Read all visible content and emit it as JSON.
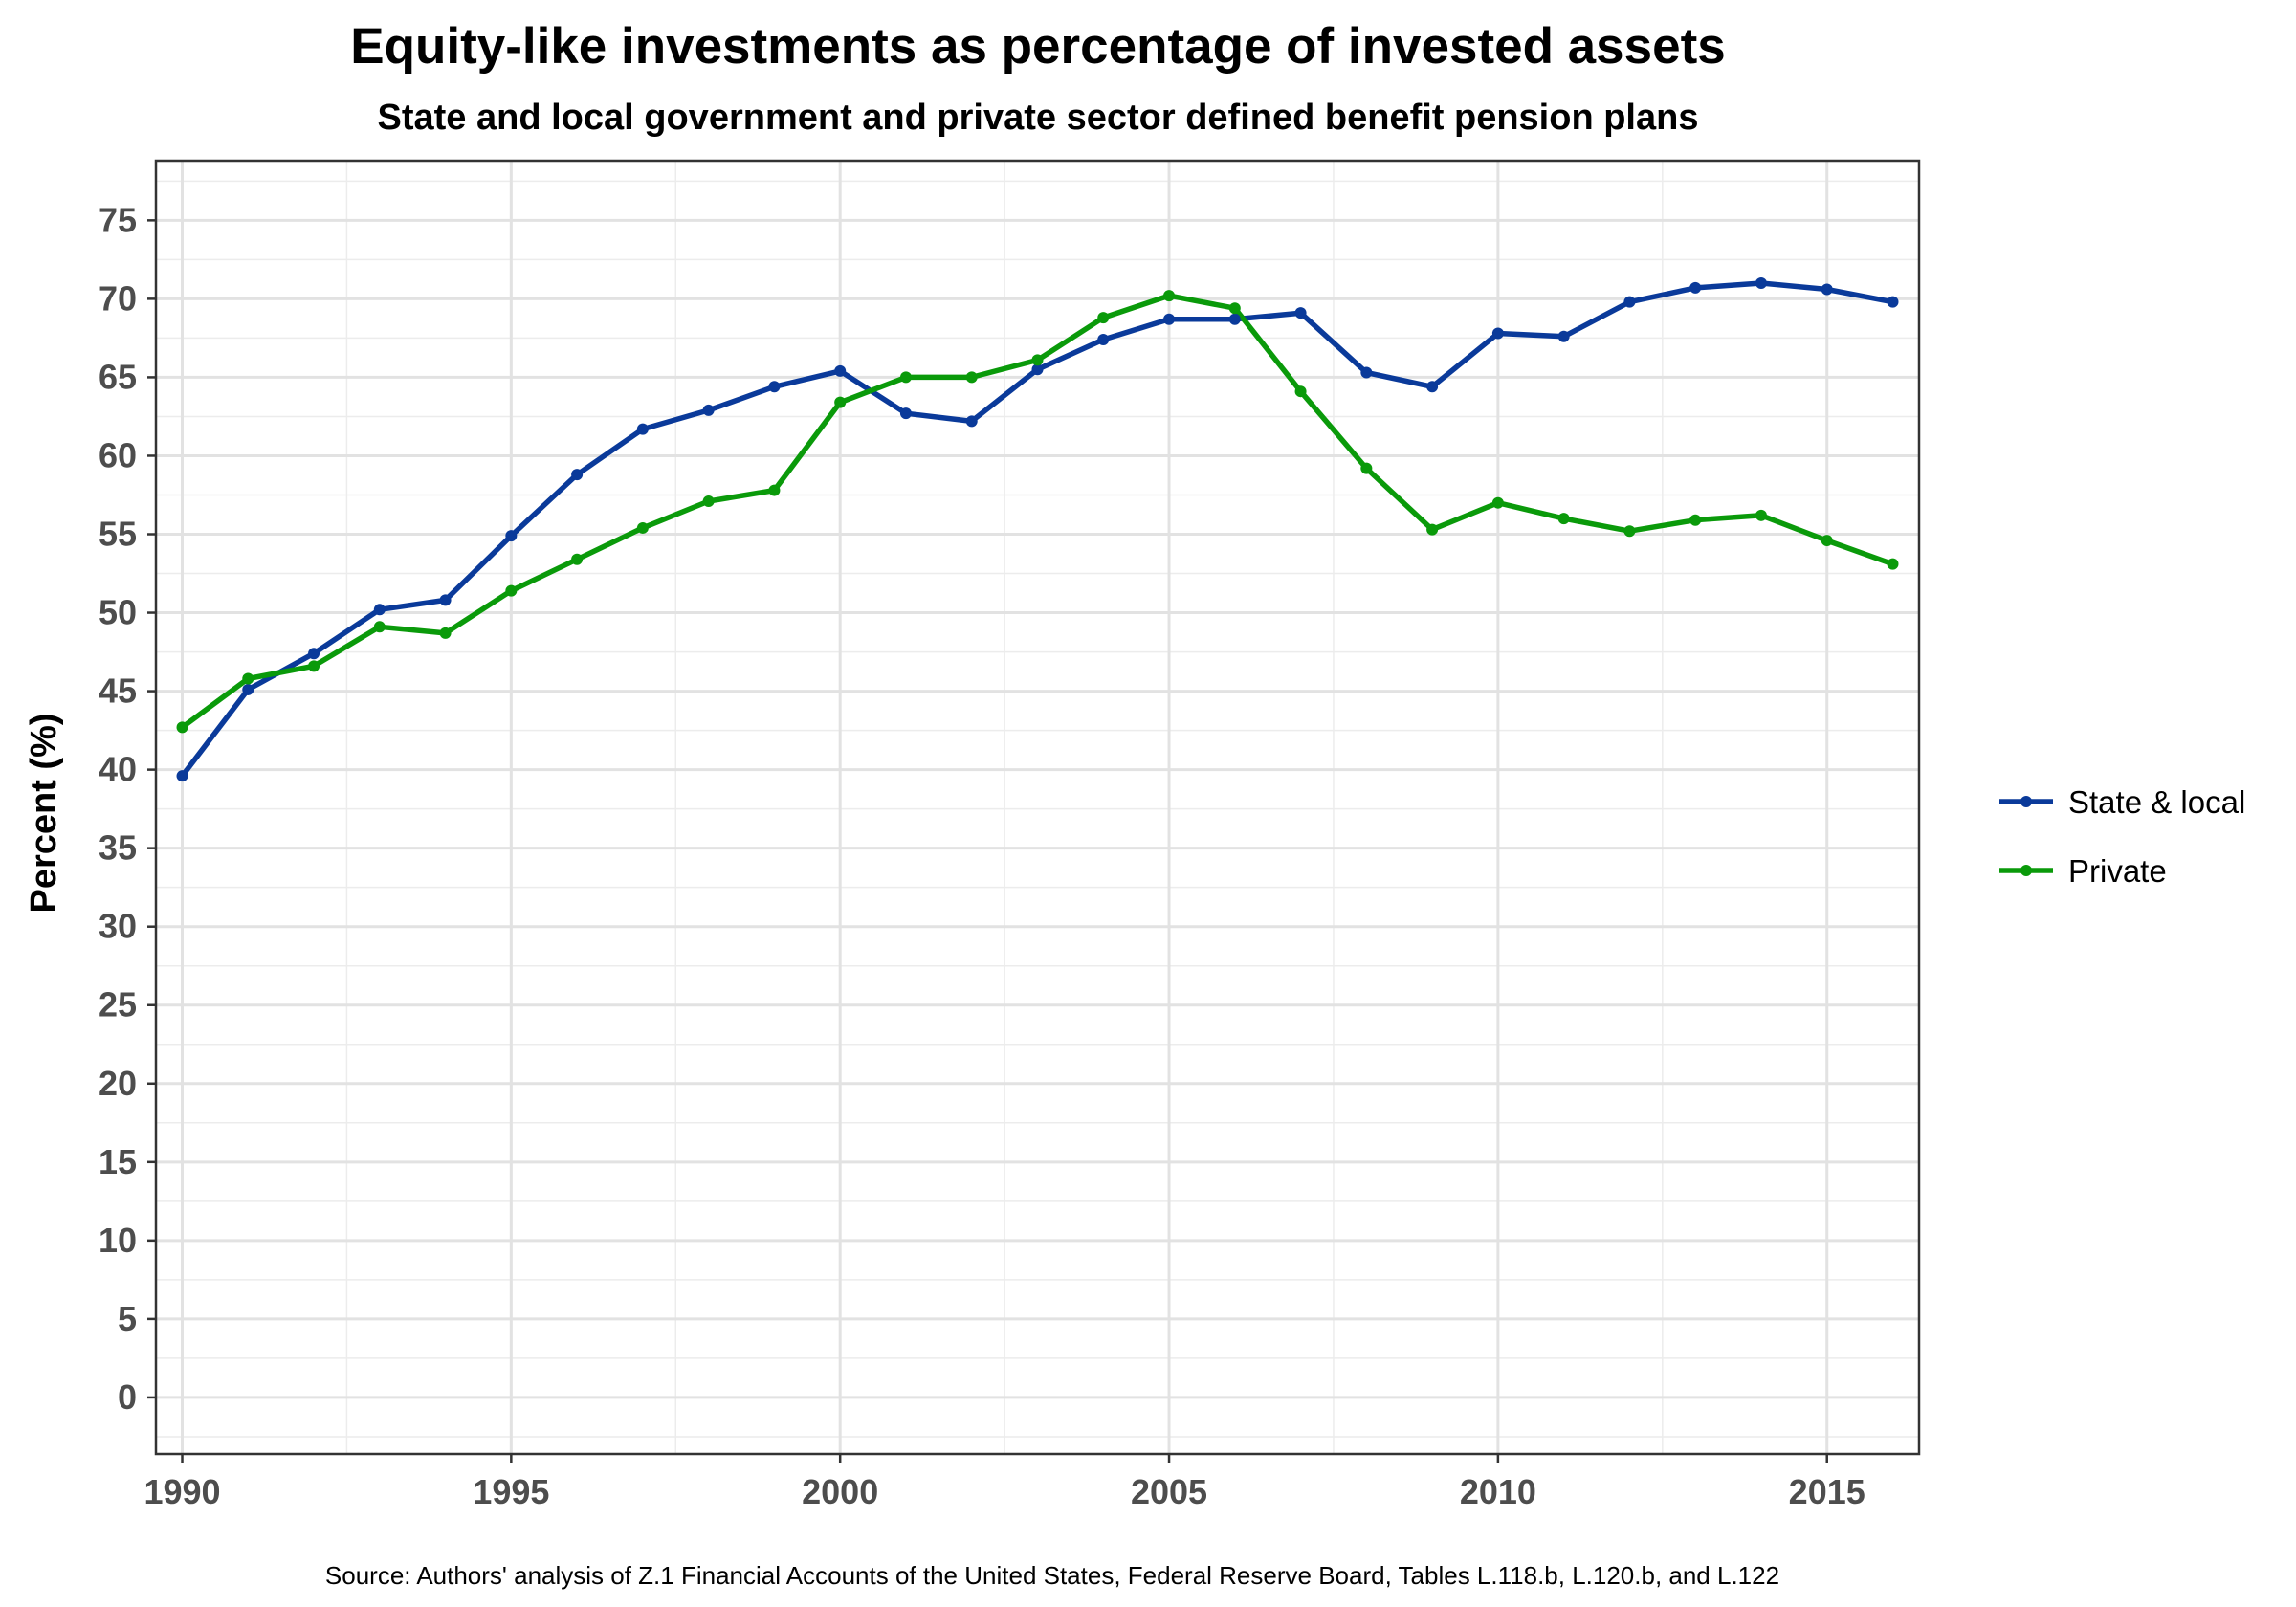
{
  "chart_data": {
    "type": "line",
    "title": "Equity-like investments as percentage of invested assets",
    "subtitle": "State and local government and private sector defined benefit pension plans",
    "xlabel": "",
    "ylabel": "Percent (%)",
    "caption": "Source: Authors' analysis of Z.1 Financial Accounts of the United States, Federal Reserve Board, Tables L.118.b, L.120.b, and L.122",
    "x": [
      1990,
      1991,
      1992,
      1993,
      1994,
      1995,
      1996,
      1997,
      1998,
      1999,
      2000,
      2001,
      2002,
      2003,
      2004,
      2005,
      2006,
      2007,
      2008,
      2009,
      2010,
      2011,
      2012,
      2013,
      2014,
      2015,
      2016
    ],
    "xlim": [
      1989.6,
      2016.4
    ],
    "ylim": [
      -3.6,
      78.8
    ],
    "xticks": [
      1990,
      1995,
      2000,
      2005,
      2010,
      2015
    ],
    "yticks": [
      0,
      5,
      10,
      15,
      20,
      25,
      30,
      35,
      40,
      45,
      50,
      55,
      60,
      65,
      70,
      75
    ],
    "grid": true,
    "legend_position": "right",
    "series": [
      {
        "name": "State & local",
        "color": "#0a3a9a",
        "values": [
          39.6,
          45.1,
          47.4,
          50.2,
          50.8,
          54.9,
          58.8,
          61.7,
          62.9,
          64.4,
          65.4,
          62.7,
          62.2,
          65.5,
          67.4,
          68.7,
          68.7,
          69.1,
          65.3,
          64.4,
          67.8,
          67.6,
          69.8,
          70.7,
          71.0,
          70.6,
          69.8
        ]
      },
      {
        "name": "Private",
        "color": "#0a9a0a",
        "values": [
          42.7,
          45.8,
          46.6,
          49.1,
          48.7,
          51.4,
          53.4,
          55.4,
          57.1,
          57.8,
          63.4,
          65.0,
          65.0,
          66.1,
          68.8,
          70.2,
          69.4,
          64.1,
          59.2,
          55.3,
          57.0,
          56.0,
          55.2,
          55.9,
          56.2,
          54.6,
          53.1
        ]
      }
    ]
  }
}
